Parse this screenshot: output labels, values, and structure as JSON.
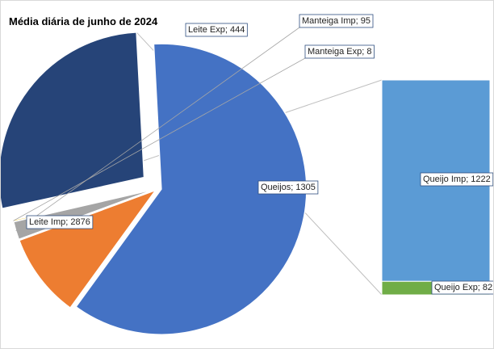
{
  "chart_data": {
    "type": "pie",
    "subtype": "bar-of-pie",
    "title": "Média diária de junho de 2024",
    "label_separator": "; ",
    "pie_slices": [
      {
        "name": "Leite Imp",
        "value": 2876,
        "color": "#4472C4"
      },
      {
        "name": "Leite Exp",
        "value": 444,
        "color": "#ED7D31"
      },
      {
        "name": "Manteiga Imp",
        "value": 95,
        "color": "#A5A5A5"
      },
      {
        "name": "Manteiga Exp",
        "value": 8,
        "color": "#FFC000"
      },
      {
        "name": "Queijos",
        "value": 1305,
        "color": "#264478"
      }
    ],
    "breakdown_of": "Queijos",
    "breakdown": [
      {
        "name": "Queijo Imp",
        "value": 1222,
        "color": "#5B9BD5"
      },
      {
        "name": "Queijo Exp",
        "value": 82,
        "color": "#70AD47"
      }
    ],
    "legend": "none",
    "grid": false
  }
}
